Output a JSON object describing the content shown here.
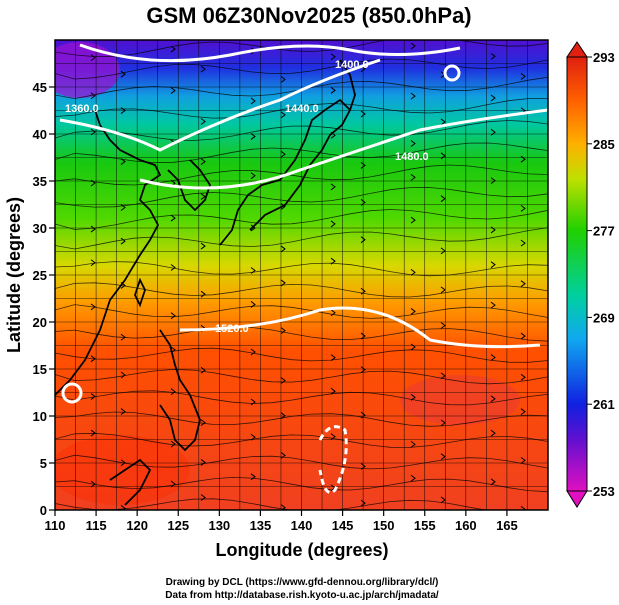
{
  "title": "GSM 06Z30Nov2025 (850.0hPa)",
  "credits": {
    "line1": "Drawing by DCL (https://www.gfd-dennou.org/library/dcl/)",
    "line2": "Data from http://database.rish.kyoto-u.ac.jp/arch/jmadata/"
  },
  "chart_data": {
    "type": "map",
    "xlabel": "Longitude (degrees)",
    "ylabel": "Latitude  (degrees)",
    "xlim": [
      110,
      170
    ],
    "ylim": [
      0,
      50
    ],
    "xticks": [
      "110",
      "115",
      "120",
      "125",
      "130",
      "135",
      "140",
      "145",
      "150",
      "155",
      "160",
      "165"
    ],
    "yticks": [
      "0",
      "5",
      "10",
      "15",
      "20",
      "25",
      "30",
      "35",
      "40",
      "45"
    ],
    "grid": true,
    "colorbar": {
      "min": 253,
      "max": 293,
      "ticks": [
        "253",
        "261",
        "269",
        "277",
        "285",
        "293"
      ]
    },
    "contour_labels": [
      "1520.0",
      "1480.0",
      "1440.0",
      "1400.0",
      "1360.0"
    ],
    "colors": {
      "warm": "#ff3a00",
      "green": "#34d600",
      "cold": "#2a20e0",
      "contour": "#ffffff"
    }
  }
}
